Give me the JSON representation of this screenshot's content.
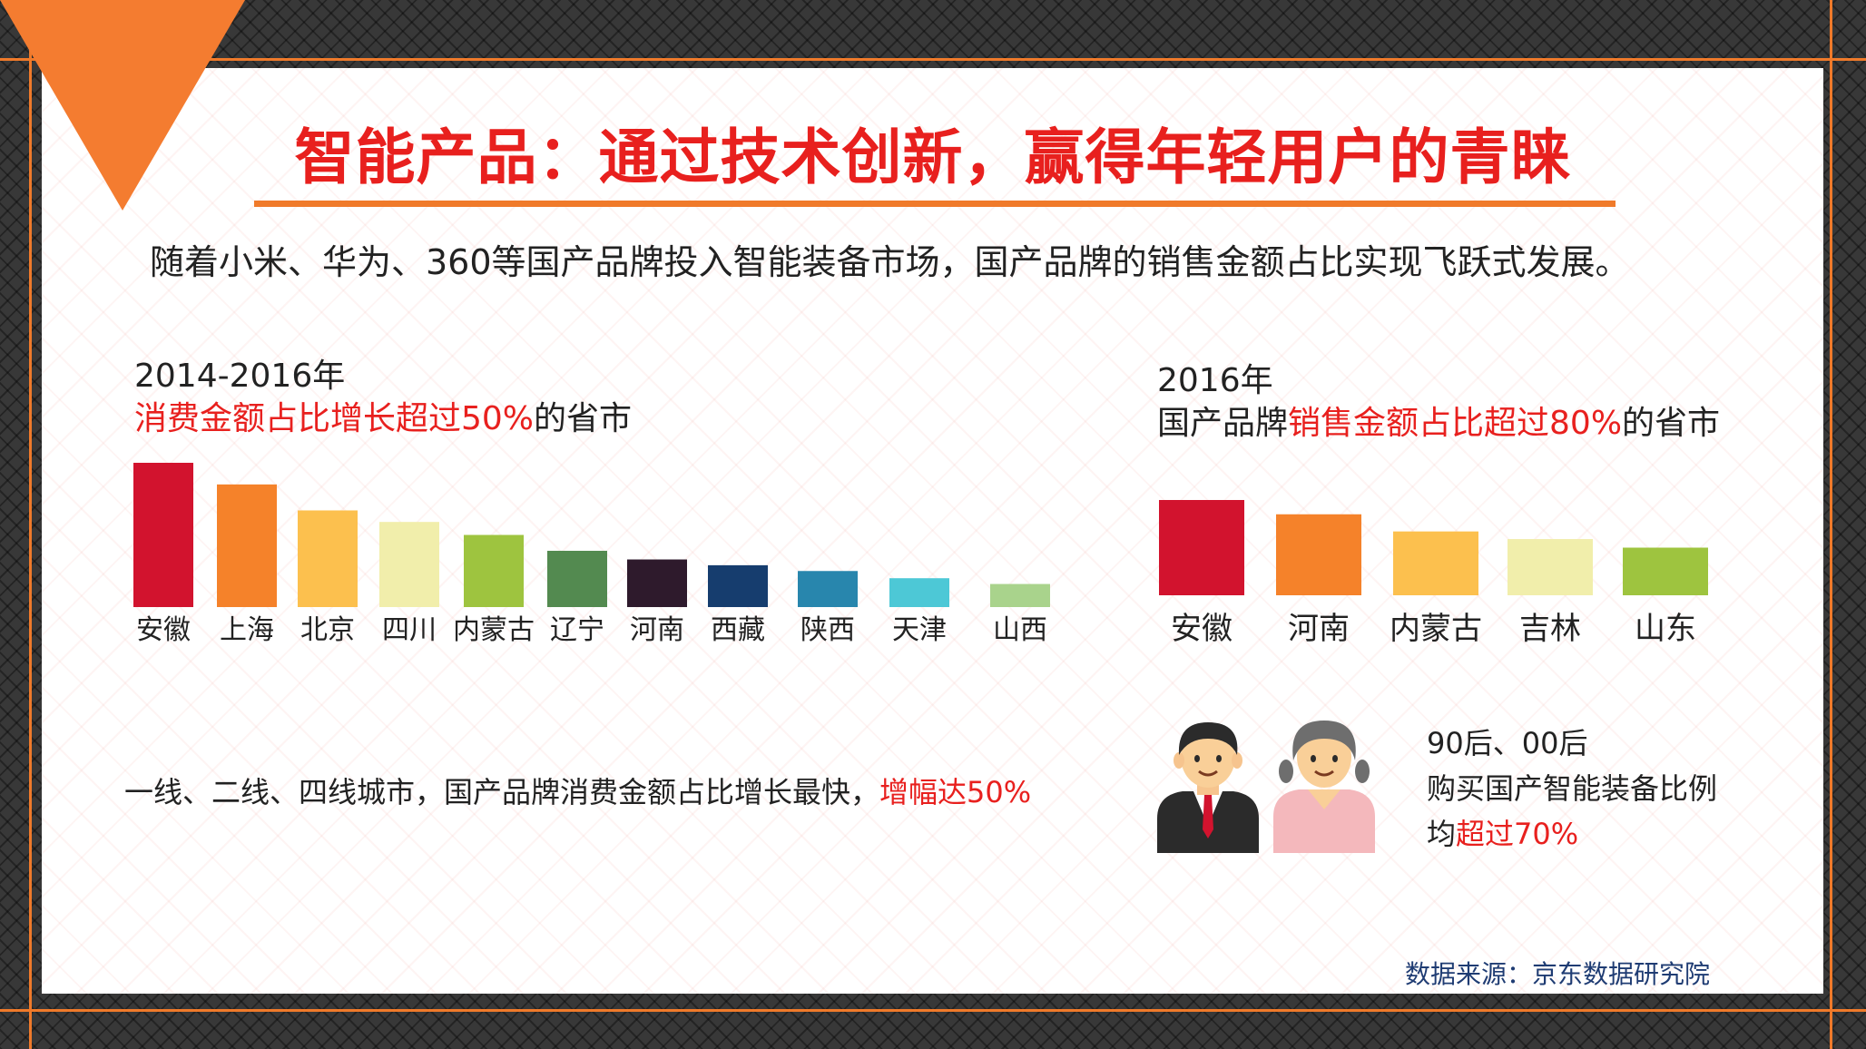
{
  "title": "智能产品：通过技术创新，赢得年轻用户的青睐",
  "subtitle": "随着小米、华为、360等国产品牌投入智能装备市场，国产品牌的销售金额占比实现飞跃式发展。",
  "left": {
    "heading_year": "2014-2016年",
    "heading_red": "消费金额占比增长超过50%",
    "heading_tail": "的省市",
    "note_plain": "一线、二线、四线城市，国产品牌消费金额占比增长最快，",
    "note_red": "增幅达50%"
  },
  "right": {
    "heading_year": "2016年",
    "heading_prefix": "国产品牌",
    "heading_red": "销售金额占比超过80%",
    "heading_tail": "的省市",
    "stat_line1": "90后、00后",
    "stat_line2": "购买国产智能装备比例",
    "stat_line3_prefix": "均",
    "stat_line3_red": "超过70%"
  },
  "source": "数据来源：京东数据研究院",
  "icons": {
    "male": "man-in-suit-icon",
    "female": "woman-icon"
  },
  "colors": {
    "accent": "#e8201e",
    "orange": "#f07a2a",
    "source": "#1f3c73"
  },
  "chart_data": [
    {
      "type": "bar",
      "categories": [
        "安徽",
        "上海",
        "北京",
        "四川",
        "内蒙古",
        "辽宁",
        "河南",
        "西藏",
        "陕西",
        "天津",
        "山西"
      ],
      "values": [
        10,
        8.5,
        6.7,
        5.9,
        5.0,
        3.9,
        3.3,
        2.9,
        2.5,
        2.0,
        1.6
      ],
      "colors": [
        "#d2132e",
        "#f5822a",
        "#fcc04e",
        "#f1eeab",
        "#9ec43f",
        "#538a50",
        "#2e1a2c",
        "#163d6e",
        "#2886ad",
        "#4dc8d6",
        "#a9d38c"
      ],
      "ylim": [
        0,
        10
      ]
    },
    {
      "type": "bar",
      "categories": [
        "安徽",
        "河南",
        "内蒙古",
        "吉林",
        "山东"
      ],
      "values": [
        10,
        8.5,
        6.7,
        5.9,
        5.0
      ],
      "colors": [
        "#d2132e",
        "#f5822a",
        "#fcc04e",
        "#f1eeab",
        "#9ec43f"
      ],
      "ylim": [
        0,
        10
      ]
    }
  ]
}
